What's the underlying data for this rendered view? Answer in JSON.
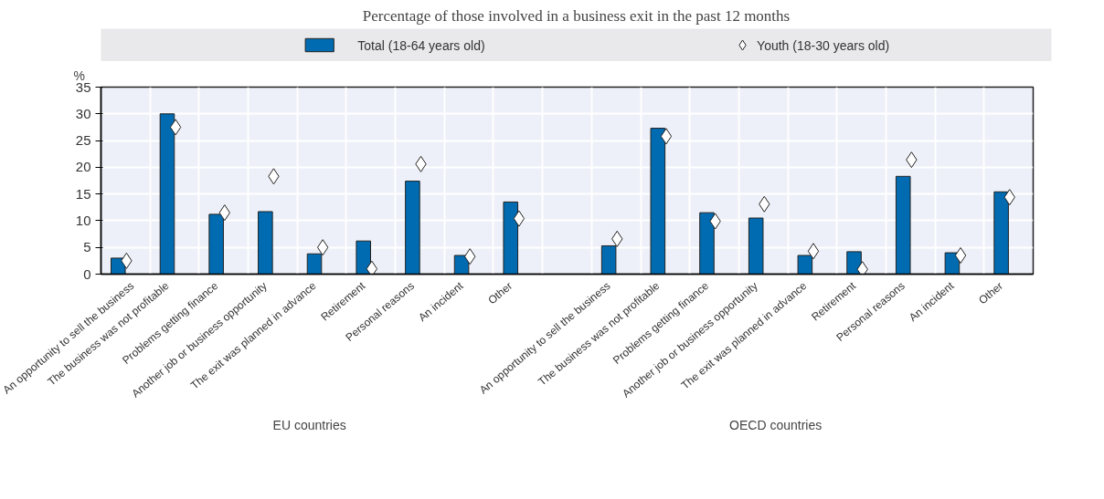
{
  "chart_data": {
    "type": "bar",
    "subtitle": "Percentage of those involved in a business exit in the past 12 months",
    "ylabel": "%",
    "categories": [
      "An opportunity to sell the business",
      "The business was not profitable",
      "Problems getting finance",
      "Another job or business opportunity",
      "The exit was planned in advance",
      "Retirement",
      "Personal reasons",
      "An incident",
      "Other",
      null,
      "An opportunity to sell the business",
      "The business was not profitable",
      "Problems getting finance",
      "Another job or business opportunity",
      "The exit was planned in advance",
      "Retirement",
      "Personal reasons",
      "An incident",
      "Other"
    ],
    "series": [
      {
        "name": "Total (18-64 years old)",
        "color": "#006bb0",
        "values": [
          3.0,
          30.0,
          11.2,
          11.7,
          3.8,
          6.2,
          17.4,
          3.5,
          13.5,
          null,
          5.3,
          27.3,
          11.5,
          10.5,
          3.5,
          4.2,
          18.3,
          4.0,
          15.4
        ]
      },
      {
        "name": "Youth (18-30 years old)",
        "type": "scatter",
        "marker": "diamond",
        "color": "#ffffff",
        "values": [
          2.5,
          27.5,
          11.5,
          18.3,
          5.0,
          1.0,
          20.6,
          3.3,
          10.4,
          null,
          6.6,
          25.8,
          9.9,
          13.1,
          4.3,
          0.9,
          21.4,
          3.5,
          14.4
        ]
      }
    ],
    "annotations": [
      "EU countries",
      "OECD countries"
    ],
    "ylim": [
      0,
      35
    ],
    "yticks": [
      0,
      5,
      10,
      15,
      20,
      25,
      30,
      35
    ],
    "grid": true,
    "legend": "top"
  }
}
